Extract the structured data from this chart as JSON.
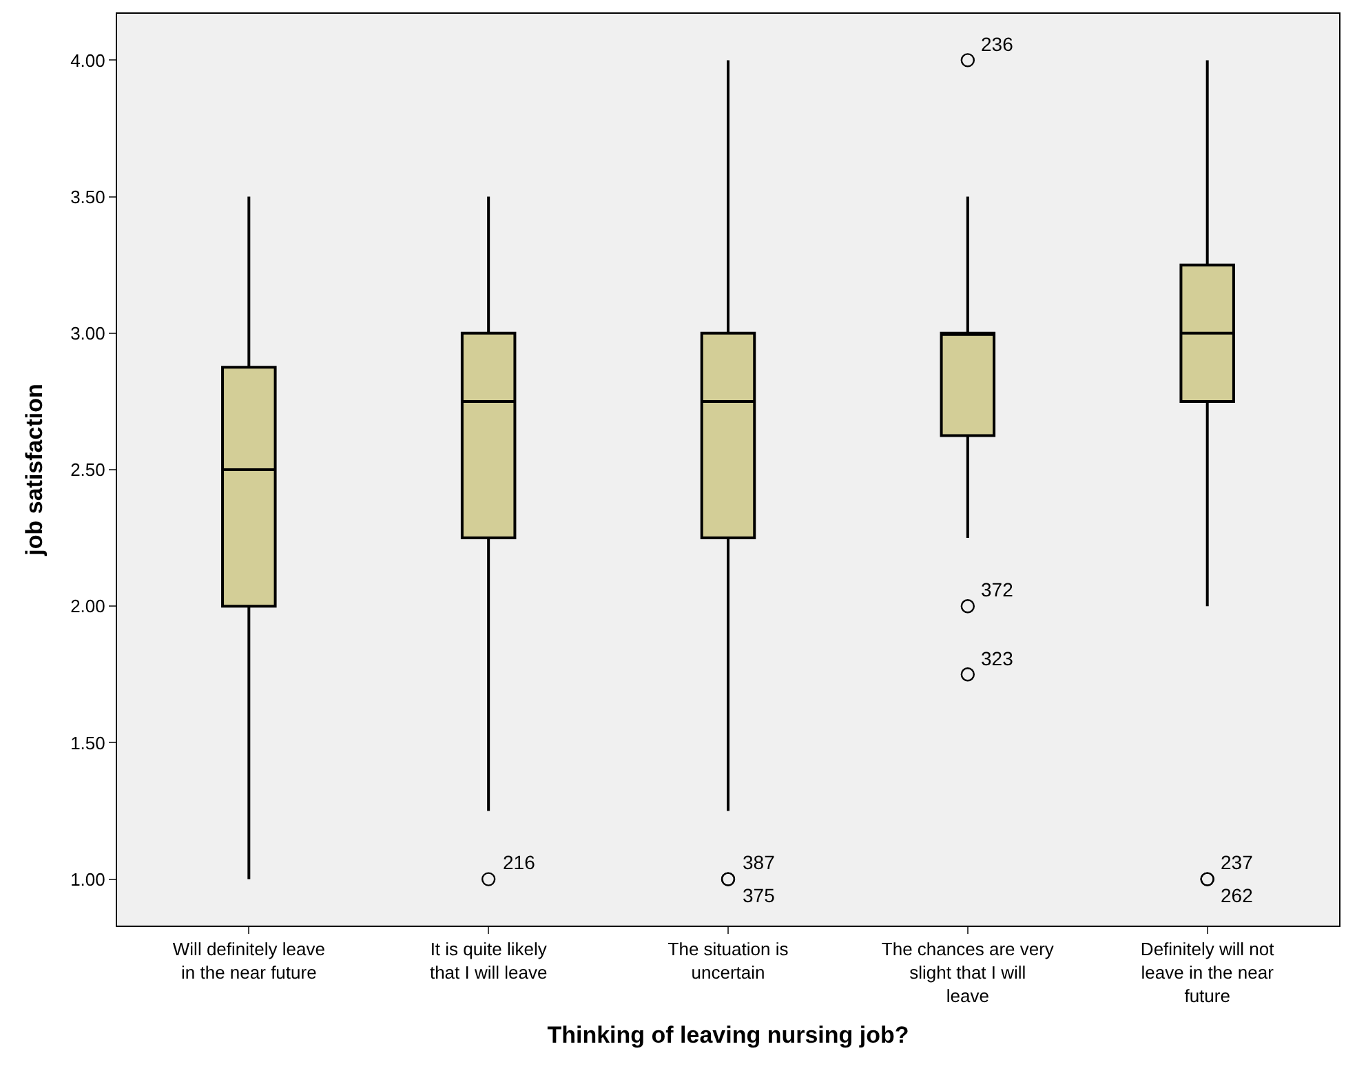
{
  "chart_data": {
    "type": "box",
    "xlabel": "Thinking of leaving nursing job?",
    "ylabel": "job satisfaction",
    "categories": [
      "Will definitely leave in the near future",
      "It is quite likely that I will leave",
      "The situation is uncertain",
      "The chances are very slight that I will leave",
      "Definitely will not leave in the near future"
    ],
    "series": [
      {
        "color": "#d3ce97",
        "boxes": [
          {
            "low": 1.0,
            "q1": 2.0,
            "median": 2.5,
            "q3": 2.875,
            "high": 3.5
          },
          {
            "low": 1.25,
            "q1": 2.25,
            "median": 2.75,
            "q3": 3.0,
            "high": 3.5,
            "outliers": [
              1.0
            ]
          },
          {
            "low": 1.25,
            "q1": 2.25,
            "median": 2.75,
            "q3": 3.0,
            "high": 4.0,
            "outliers": [
              1.0,
              1.0
            ]
          },
          {
            "low": 2.25,
            "q1": 2.625,
            "median": 3.0,
            "q3": 3.0,
            "high": 3.5,
            "outliers": [
              4.0,
              2.0,
              1.75
            ]
          },
          {
            "low": 2.0,
            "q1": 2.75,
            "median": 3.0,
            "q3": 3.25,
            "high": 4.0,
            "outliers": [
              1.0,
              1.0
            ]
          }
        ]
      }
    ],
    "ylim": [
      0.83,
      4.17
    ],
    "yticks": [
      {
        "value": 1.0,
        "label": "1.00"
      },
      {
        "value": 1.5,
        "label": "1.50"
      },
      {
        "value": 2.0,
        "label": "2.00"
      },
      {
        "value": 2.5,
        "label": "2.50"
      },
      {
        "value": 3.0,
        "label": "3.00"
      },
      {
        "value": 3.5,
        "label": "3.50"
      },
      {
        "value": 4.0,
        "label": "4.00"
      }
    ],
    "grid": false,
    "marker": "circle",
    "annotations": [
      "216",
      "387",
      "375",
      "236",
      "372",
      "323",
      "237",
      "262"
    ]
  }
}
